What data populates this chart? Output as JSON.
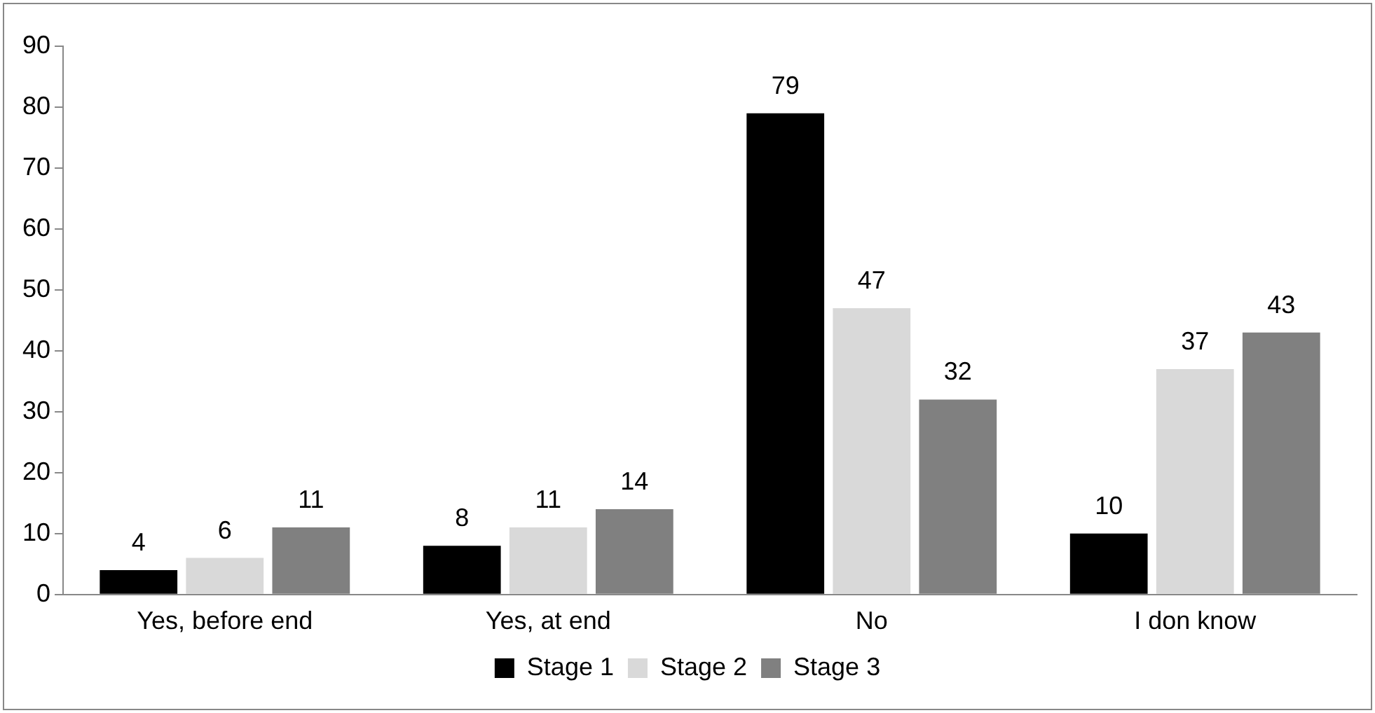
{
  "chart_data": {
    "type": "bar",
    "categories": [
      "Yes, before end",
      "Yes, at end",
      "No",
      "I don know"
    ],
    "series": [
      {
        "name": "Stage 1",
        "color": "#000000",
        "values": [
          4,
          8,
          79,
          10
        ]
      },
      {
        "name": "Stage 2",
        "color": "#d9d9d9",
        "values": [
          6,
          11,
          47,
          37
        ]
      },
      {
        "name": "Stage 3",
        "color": "#808080",
        "values": [
          11,
          14,
          32,
          43
        ]
      }
    ],
    "ylim": [
      0,
      90
    ],
    "yticks": [
      0,
      10,
      20,
      30,
      40,
      50,
      60,
      70,
      80,
      90
    ],
    "grid": false,
    "legend": "bottom",
    "data_labels": true
  }
}
